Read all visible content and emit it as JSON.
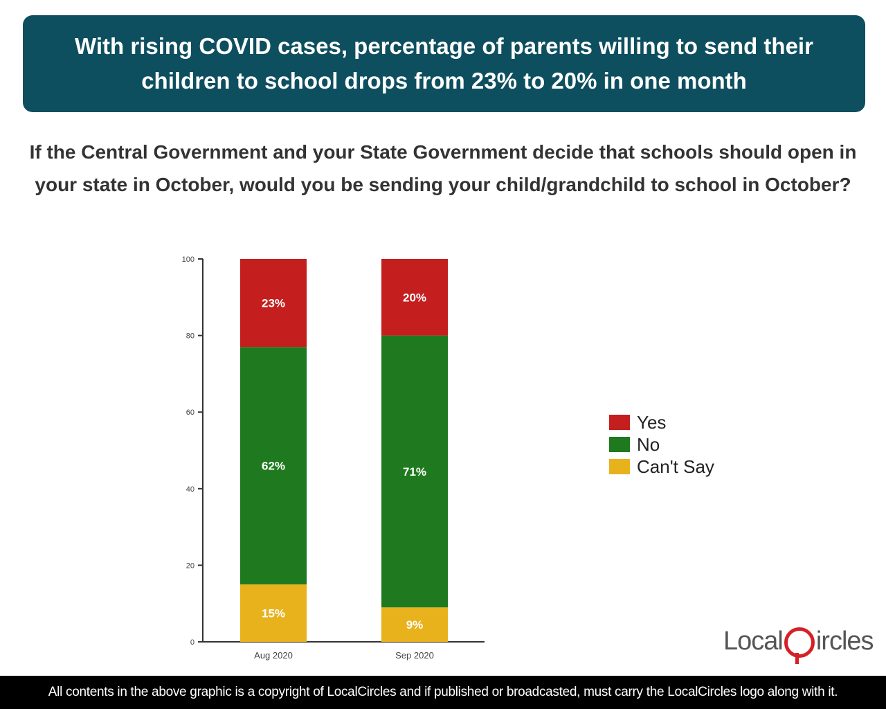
{
  "banner": {
    "title": "With rising COVID cases, percentage of parents willing to send their children to school drops from 23% to 20% in one month"
  },
  "question": "If the Central Government and your State Government decide that schools should open in your state in October, would you be sending your child/grandchild to school in October?",
  "chart_data": {
    "type": "bar",
    "stacked": true,
    "categories": [
      "Aug 2020",
      "Sep 2020"
    ],
    "series": [
      {
        "name": "Can't Say",
        "values": [
          15,
          9
        ],
        "labels": [
          "15%",
          "9%"
        ],
        "color": "#e8b21d"
      },
      {
        "name": "No",
        "values": [
          62,
          71
        ],
        "labels": [
          "62%",
          "71%"
        ],
        "color": "#1f7a1f"
      },
      {
        "name": "Yes",
        "values": [
          23,
          20
        ],
        "labels": [
          "23%",
          "20%"
        ],
        "color": "#c41e1e"
      }
    ],
    "ylim": [
      0,
      100
    ],
    "yticks": [
      "0",
      "20",
      "40",
      "60",
      "80",
      "100"
    ],
    "legend_position": "right",
    "legend": [
      "Yes",
      "No",
      "Can't Say"
    ]
  },
  "logo": {
    "text_left": "Local",
    "text_right": "ircles"
  },
  "footer": {
    "text": "All contents in the above graphic is a copyright of LocalCircles and if published or broadcasted, must carry the LocalCircles logo along with it."
  }
}
